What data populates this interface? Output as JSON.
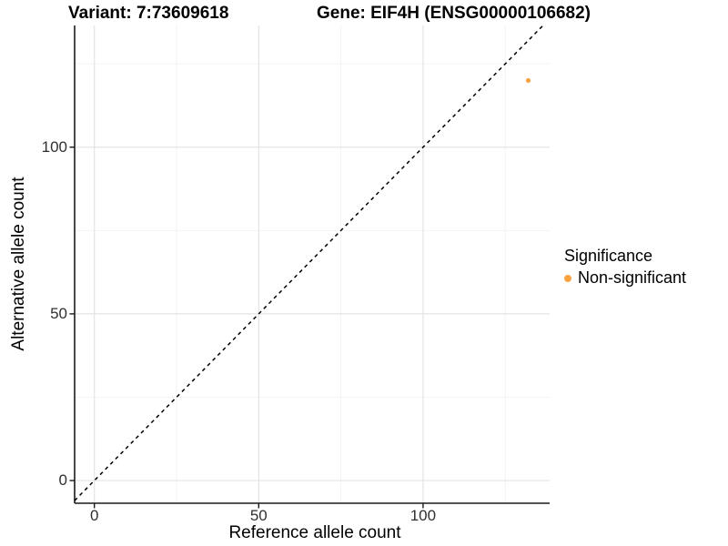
{
  "titles": {
    "left": "Variant: 7:73609618",
    "right": "Gene: EIF4H (ENSG00000106682)"
  },
  "chart_data": {
    "type": "scatter",
    "title_left": "Variant: 7:73609618",
    "title_right": "Gene: EIF4H (ENSG00000106682)",
    "xlabel": "Reference allele count",
    "ylabel": "Alternative allele count",
    "xlim": [
      -6,
      138.5
    ],
    "ylim": [
      -6.8,
      136.5
    ],
    "x_ticks": [
      0,
      50,
      100
    ],
    "y_ticks": [
      0,
      50,
      100
    ],
    "x_minor_ticks": [
      25,
      75,
      125
    ],
    "y_minor_ticks": [
      25,
      75,
      125
    ],
    "grid": true,
    "legend_position": "right",
    "series": [
      {
        "name": "Non-significant",
        "color": "#F9A240",
        "points": [
          {
            "x": 132,
            "y": 120
          }
        ]
      }
    ],
    "reference_line": {
      "slope": 1,
      "intercept": 0,
      "style": "dashed",
      "color": "#000000"
    },
    "legend": {
      "title": "Significance",
      "items": [
        {
          "label": "Non-significant",
          "color": "#F9A240"
        }
      ]
    },
    "colors": {
      "point": "#F9A240",
      "grid_major": "#E4E4E4",
      "grid_minor": "#F3F3F3",
      "axis": "#1A1A1A",
      "tick_label": "#303030"
    }
  }
}
